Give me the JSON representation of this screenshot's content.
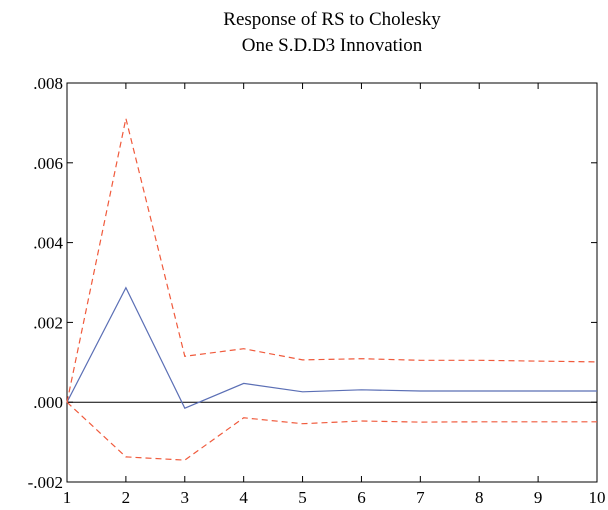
{
  "chart_data": {
    "type": "line",
    "title_lines": [
      "Response of RS to Cholesky",
      "One S.D.D3 Innovation"
    ],
    "xlabel": "",
    "ylabel": "",
    "x": [
      1,
      2,
      3,
      4,
      5,
      6,
      7,
      8,
      9,
      10
    ],
    "x_tick_labels": [
      "1",
      "2",
      "3",
      "4",
      "5",
      "6",
      "7",
      "8",
      "9",
      "10"
    ],
    "y_tick_values": [
      -0.002,
      0.0,
      0.002,
      0.004,
      0.006,
      0.008
    ],
    "y_tick_labels": [
      "-.002",
      ".000",
      ".002",
      ".004",
      ".006",
      ".008"
    ],
    "xlim": [
      1,
      10
    ],
    "ylim": [
      -0.002,
      0.008
    ],
    "grid": false,
    "zero_line": true,
    "series": [
      {
        "values": [
          0.0,
          0.00287,
          -0.00015,
          0.00047,
          0.00026,
          0.00031,
          0.00028,
          0.00028,
          0.00028,
          0.00028
        ],
        "color": "#5B6FB5",
        "style": "solid"
      },
      {
        "values": [
          0.0,
          0.00711,
          0.00115,
          0.00134,
          0.00106,
          0.00109,
          0.00105,
          0.00105,
          0.00103,
          0.00101
        ],
        "color": "#F05A3C",
        "style": "dashed"
      },
      {
        "values": [
          0.0,
          -0.00137,
          -0.00145,
          -0.00039,
          -0.00054,
          -0.00047,
          -0.0005,
          -0.00049,
          -0.00049,
          -0.00049
        ],
        "color": "#F05A3C",
        "style": "dashed"
      }
    ]
  }
}
